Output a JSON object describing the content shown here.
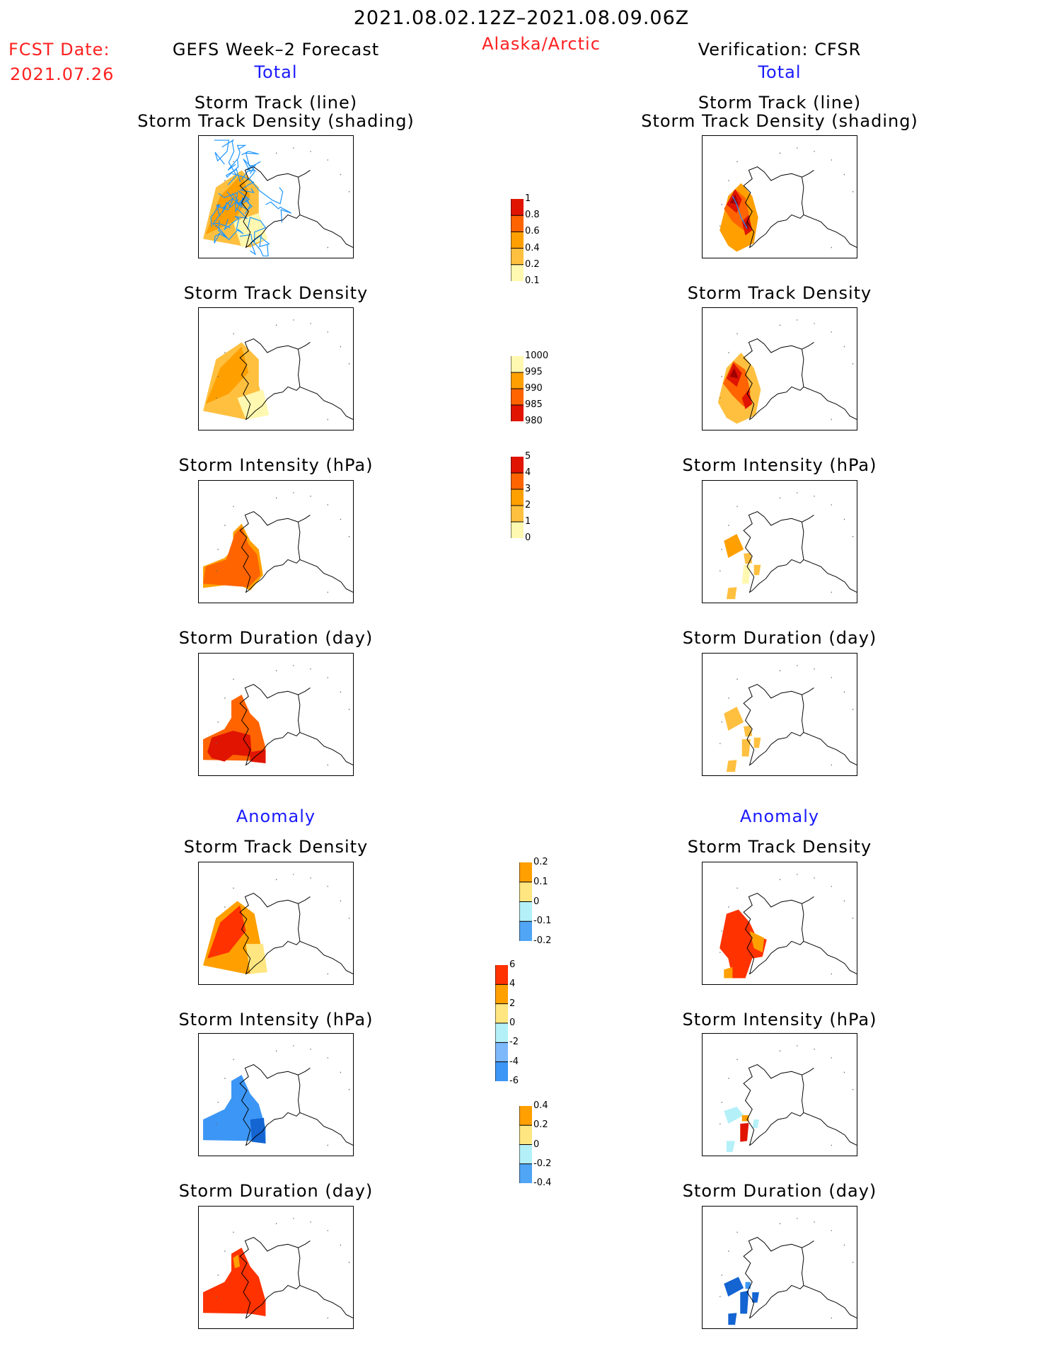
{
  "header": {
    "title": "2021.08.02.12Z–2021.08.09.06Z",
    "fcst_label": "FCST Date:",
    "fcst_date": "2021.07.26",
    "left_title": "GEFS Week–2 Forecast",
    "left_sub": "Total",
    "region": "Alaska/Arctic",
    "right_title": "Verification: CFSR",
    "right_sub": "Total"
  },
  "panels": {
    "track_line": "Storm Track (line)",
    "track_shading": "Storm Track Density (shading)",
    "density": "Storm Track Density",
    "intensity": "Storm Intensity (hPa)",
    "duration": "Storm Duration (day)",
    "anomaly": "Anomaly"
  },
  "chart_data": [
    {
      "type": "heatmap",
      "name": "colorbar-density",
      "labels": [
        "1",
        "0.8",
        "0.6",
        "0.4",
        "0.2",
        "0.1"
      ],
      "colors": [
        "#a00000",
        "#e01400",
        "#ff6400",
        "#ffa000",
        "#ffc040",
        "#fff8b0"
      ],
      "extend": "max"
    },
    {
      "type": "heatmap",
      "name": "colorbar-intensity",
      "labels": [
        "1000",
        "995",
        "990",
        "985",
        "980"
      ],
      "colors": [
        "#fff8b0",
        "#ffa000",
        "#ff6400",
        "#e01400",
        "#a00000"
      ],
      "extend": "min"
    },
    {
      "type": "heatmap",
      "name": "colorbar-duration",
      "labels": [
        "5",
        "4",
        "3",
        "2",
        "1",
        "0"
      ],
      "colors": [
        "#a00000",
        "#e01400",
        "#ff6400",
        "#ffa000",
        "#ffc040",
        "#fff8b0"
      ],
      "extend": "max"
    },
    {
      "type": "heatmap",
      "name": "colorbar-anom-density",
      "labels": [
        "0.2",
        "0.1",
        "0",
        "-0.1",
        "-0.2"
      ],
      "colors": [
        "#ff3200",
        "#ffa000",
        "#ffe680",
        "#b4f0f8",
        "#50a5f5",
        "#1464d2"
      ],
      "extend": "both"
    },
    {
      "type": "heatmap",
      "name": "colorbar-anom-intensity",
      "labels": [
        "6",
        "4",
        "2",
        "0",
        "-2",
        "-4",
        "-6"
      ],
      "colors": [
        "#a00000",
        "#ff3200",
        "#ffa000",
        "#ffe680",
        "#b4f0f8",
        "#7db9fa",
        "#3c96f5",
        "#1464d2"
      ],
      "extend": "both"
    },
    {
      "type": "heatmap",
      "name": "colorbar-anom-duration",
      "labels": [
        "0.4",
        "0.2",
        "0",
        "-0.2",
        "-0.4"
      ],
      "colors": [
        "#ff3200",
        "#ffa000",
        "#ffe680",
        "#b4f0f8",
        "#50a5f5",
        "#1464d2"
      ],
      "extend": "both"
    }
  ]
}
